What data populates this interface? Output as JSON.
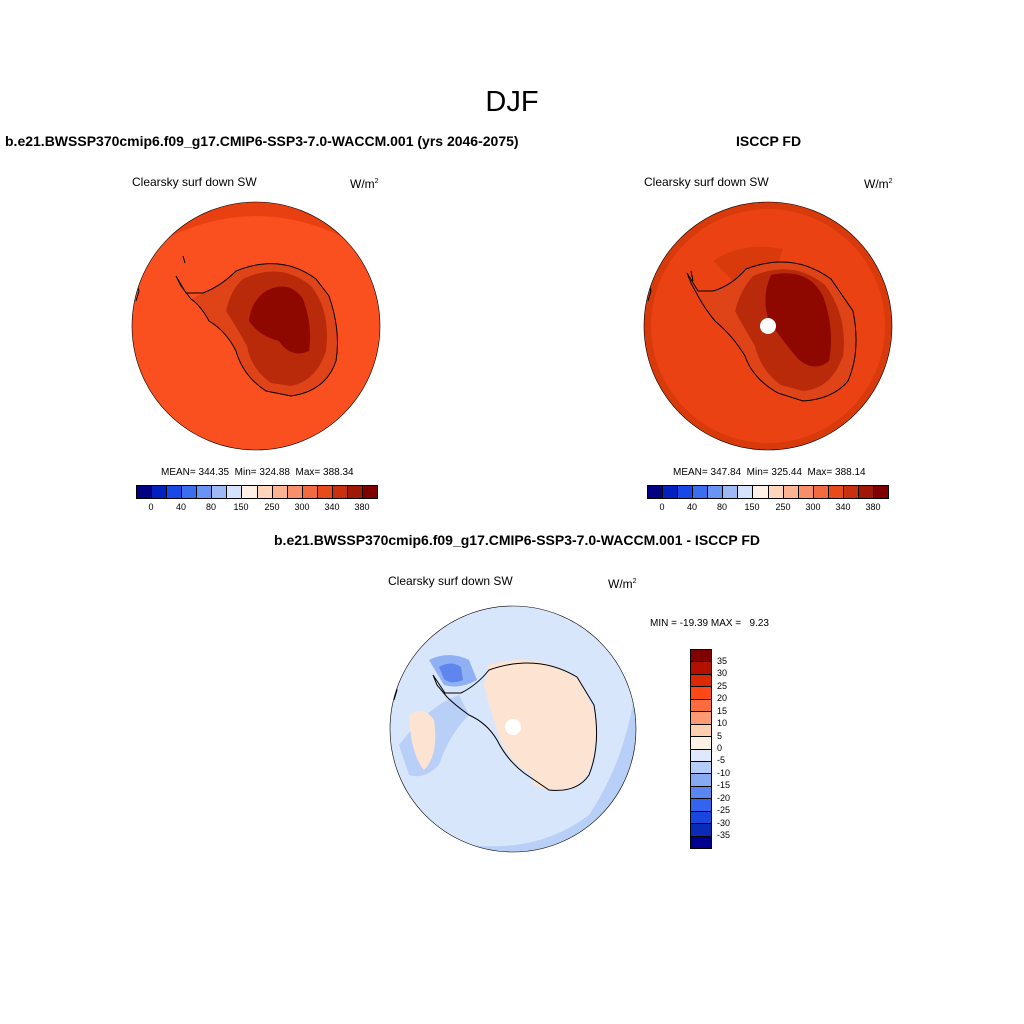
{
  "title": "DJF",
  "panel_left": {
    "title": "b.e21.BWSSP370cmip6.f09_g17.CMIP6-SSP3-7.0-WACCM.001 (yrs 2046-2075)",
    "variable": "Clearsky surf down SW",
    "units_base": "W/m",
    "units_exp": "2",
    "stats": "MEAN= 344.35  Min= 324.88  Max= 388.34"
  },
  "panel_right": {
    "title": "ISCCP FD",
    "variable": "Clearsky surf down SW",
    "units_base": "W/m",
    "units_exp": "2",
    "stats": "MEAN= 347.84  Min= 325.44  Max= 388.14"
  },
  "panel_diff": {
    "title": "b.e21.BWSSP370cmip6.f09_g17.CMIP6-SSP3-7.0-WACCM.001 - ISCCP FD",
    "variable": "Clearsky surf down SW",
    "units_base": "W/m",
    "units_exp": "2",
    "stats": "MIN = -19.39 MAX =   9.23"
  },
  "colorbar_abs": {
    "colors": [
      "#000080",
      "#0020c0",
      "#1848e8",
      "#3a6df0",
      "#6a94f3",
      "#9fb9f4",
      "#d4e3fb",
      "#fff0e6",
      "#ffd5bc",
      "#fcb394",
      "#f98f6a",
      "#f26a40",
      "#e84a1a",
      "#c83010",
      "#a01808",
      "#800000"
    ],
    "ticks": [
      "0",
      "40",
      "80",
      "150",
      "250",
      "300",
      "340",
      "380"
    ]
  },
  "colorbar_diff": {
    "colors": [
      "#800000",
      "#b41000",
      "#dc2a00",
      "#ff4818",
      "#ff6c40",
      "#fc9a74",
      "#ffcfb0",
      "#fff0e6",
      "#dfe9fb",
      "#b4cdf8",
      "#86a9f2",
      "#5a87ef",
      "#3464ee",
      "#1a46e0",
      "#0a2ab8",
      "#000090"
    ],
    "ticks": [
      "35",
      "30",
      "25",
      "20",
      "15",
      "10",
      "5",
      "0",
      "-5",
      "-10",
      "-15",
      "-20",
      "-25",
      "-30",
      "-35"
    ]
  },
  "map_colors": {
    "ocean_left": "#fa5020",
    "ocean_left_outer": "#e84010",
    "land_mid": "#de4418",
    "land_high": "#b82a0a",
    "land_top": "#8e0800",
    "ocean_right": "#ea4212",
    "ocean_right_outer": "#d83a0c",
    "diff_base": "#d8e6fc",
    "diff_light": "#b8cff8",
    "diff_mid": "#8fb0f3",
    "diff_dark": "#5f86ee",
    "diff_warm": "#fde4d2"
  }
}
